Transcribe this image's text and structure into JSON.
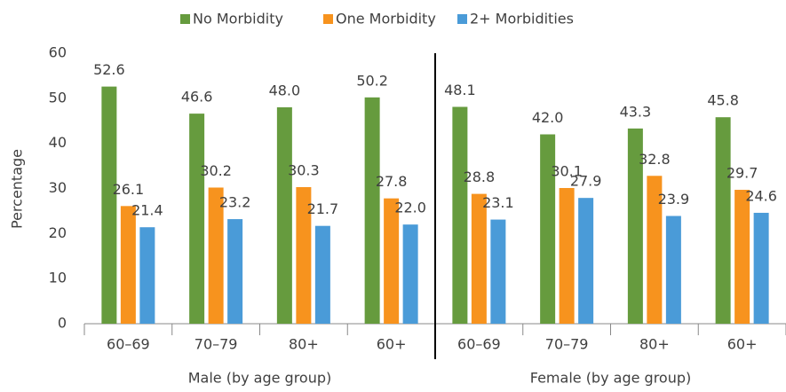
{
  "chart_data": {
    "type": "bar",
    "y_label": "Percentage",
    "categories": [
      "60–69",
      "70–79",
      "80+",
      "60+",
      "60–69",
      "70–79",
      "80+",
      "60+"
    ],
    "group_labels": [
      "Male (by age group)",
      "Female (by age group)"
    ],
    "series": [
      {
        "name": "No Morbidity",
        "color": "#669b3e",
        "values": [
          52.6,
          46.6,
          48.0,
          50.2,
          48.1,
          42.0,
          43.3,
          45.8
        ],
        "value_labels": [
          "52.6",
          "46.6",
          "48.0",
          "50.2",
          "48.1",
          "42.0",
          "43.3",
          "45.8"
        ]
      },
      {
        "name": "One Morbidity",
        "color": "#f7931e",
        "values": [
          26.1,
          30.2,
          30.3,
          27.8,
          28.8,
          30.1,
          32.8,
          29.7
        ],
        "value_labels": [
          "26.1",
          "30.2",
          "30.3",
          "27.8",
          "28.8",
          "30.1",
          "32.8",
          "29.7"
        ]
      },
      {
        "name": "2+ Morbidities",
        "color": "#4a9bd8",
        "values": [
          21.4,
          23.2,
          21.7,
          22.0,
          23.1,
          27.9,
          23.9,
          24.6
        ],
        "value_labels": [
          "21.4",
          "23.2",
          "21.7",
          "22.0",
          "23.1",
          "27.9",
          "23.9",
          "24.6"
        ]
      }
    ],
    "ylim": [
      0,
      60
    ],
    "yticks": [
      0,
      10,
      20,
      30,
      40,
      50,
      60
    ],
    "legend": "top"
  }
}
